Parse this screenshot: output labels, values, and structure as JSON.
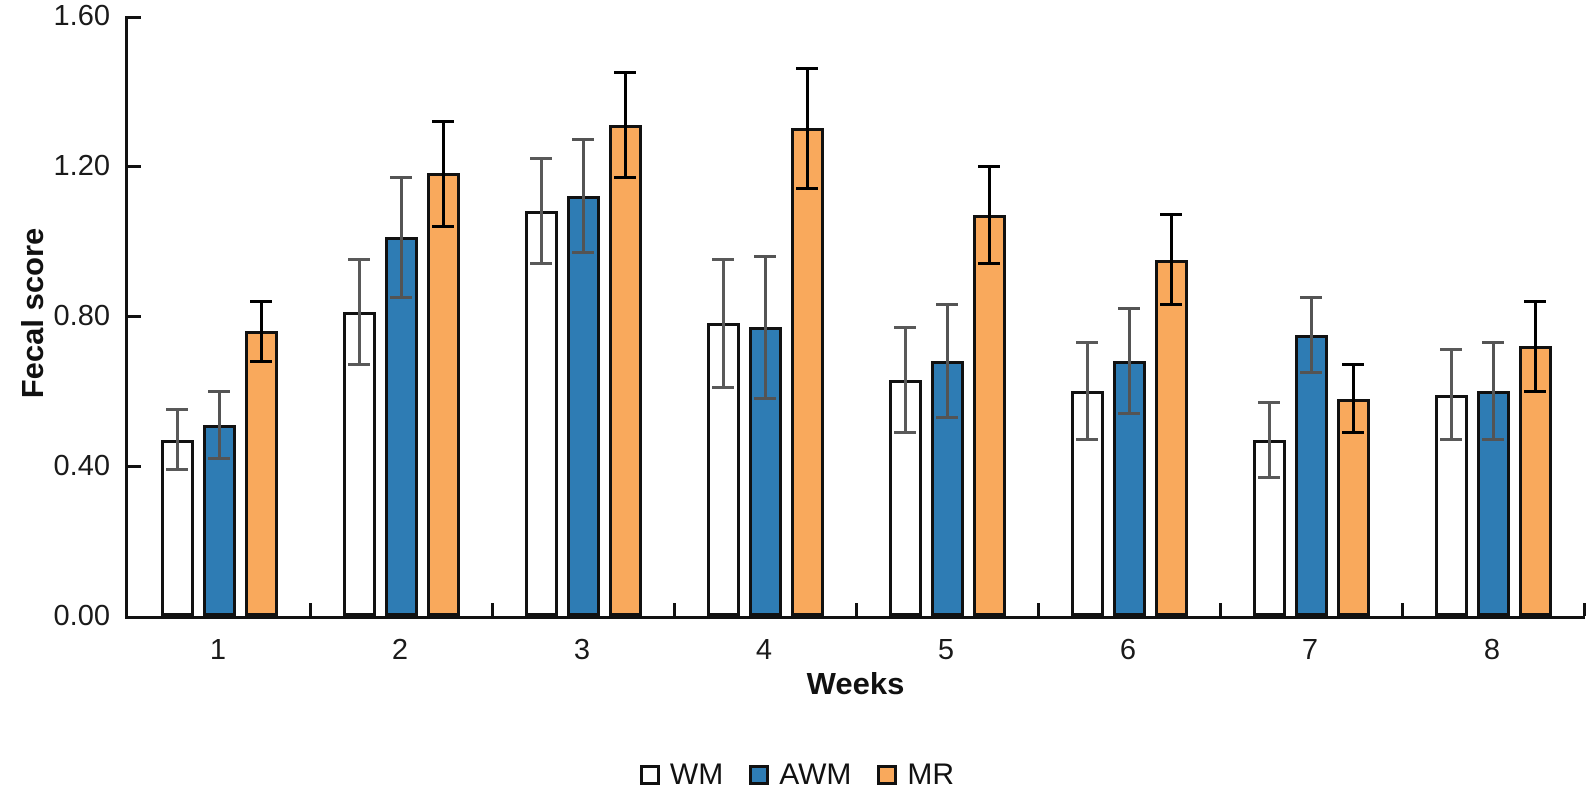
{
  "figure": {
    "background": "#ffffff",
    "y_axis_title": "Fecal score",
    "x_axis_title": "Weeks"
  },
  "chart_data": {
    "type": "bar",
    "title": "",
    "xlabel": "Weeks",
    "ylabel": "Fecal score",
    "categories": [
      "1",
      "2",
      "3",
      "4",
      "5",
      "6",
      "7",
      "8"
    ],
    "series": [
      {
        "name": "WM",
        "fill": "#ffffff",
        "error_color": "#595959",
        "values": [
          0.47,
          0.81,
          1.08,
          0.78,
          0.63,
          0.6,
          0.47,
          0.59
        ],
        "errors": [
          0.08,
          0.14,
          0.14,
          0.17,
          0.14,
          0.13,
          0.1,
          0.12
        ]
      },
      {
        "name": "AWM",
        "fill": "#2e7cb4",
        "error_color": "#545454",
        "values": [
          0.51,
          1.01,
          1.12,
          0.77,
          0.68,
          0.68,
          0.75,
          0.6
        ],
        "errors": [
          0.09,
          0.16,
          0.15,
          0.19,
          0.15,
          0.14,
          0.1,
          0.13
        ]
      },
      {
        "name": "MR",
        "fill": "#f9a95c",
        "error_color": "#000000",
        "values": [
          0.76,
          1.18,
          1.31,
          1.3,
          1.07,
          0.95,
          0.58,
          0.72
        ],
        "errors": [
          0.08,
          0.14,
          0.14,
          0.16,
          0.13,
          0.12,
          0.09,
          0.12
        ]
      }
    ],
    "ylim": [
      0,
      1.6
    ],
    "yticks": [
      {
        "label": "0.00",
        "value": 0.0
      },
      {
        "label": "0.40",
        "value": 0.4
      },
      {
        "label": "0.80",
        "value": 0.8
      },
      {
        "label": "1.20",
        "value": 1.2
      },
      {
        "label": "1.60",
        "value": 1.6
      }
    ],
    "grid": false,
    "legend_position": "bottom",
    "error_bars": true
  }
}
